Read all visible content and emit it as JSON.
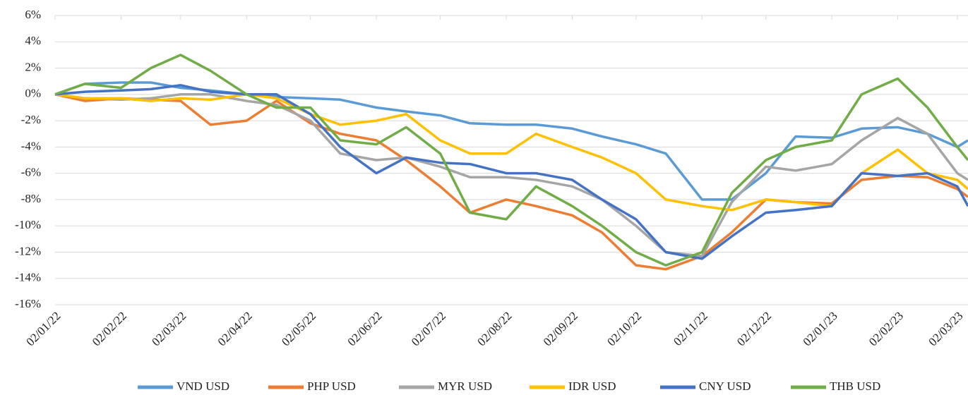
{
  "chart_data": {
    "type": "line",
    "x": [
      "02/01/22",
      "16/01/22",
      "02/02/22",
      "16/02/22",
      "02/03/22",
      "16/03/22",
      "02/04/22",
      "16/04/22",
      "02/05/22",
      "16/05/22",
      "02/06/22",
      "16/06/22",
      "02/07/22",
      "16/07/22",
      "02/08/22",
      "16/08/22",
      "02/09/22",
      "16/09/22",
      "02/10/22",
      "16/10/22",
      "02/11/22",
      "16/11/22",
      "02/12/22",
      "16/12/22",
      "02/01/23",
      "16/01/23",
      "02/02/23",
      "16/02/23",
      "02/03/23",
      "07/03/23"
    ],
    "series": [
      {
        "name": "VND USD",
        "color": "#5b9bd5",
        "values": [
          0,
          0.8,
          0.9,
          0.9,
          0.5,
          0.3,
          0,
          -0.2,
          -0.3,
          -0.4,
          -1.0,
          -1.3,
          -1.6,
          -2.2,
          -2.3,
          -2.3,
          -2.6,
          -3.2,
          -3.8,
          -4.5,
          -8.0,
          -8.0,
          -6.0,
          -3.2,
          -3.3,
          -2.6,
          -2.5,
          -3.0,
          -4.0,
          -3.5
        ]
      },
      {
        "name": "PHP USD",
        "color": "#ed7d31",
        "values": [
          0,
          -0.5,
          -0.3,
          -0.4,
          -0.5,
          -2.3,
          -2.0,
          -0.5,
          -2.2,
          -3.0,
          -3.5,
          -5.0,
          -7.0,
          -9.0,
          -8.0,
          -8.5,
          -9.2,
          -10.5,
          -13.0,
          -13.3,
          -12.3,
          -10.5,
          -8.0,
          -8.2,
          -8.3,
          -6.5,
          -6.2,
          -6.3,
          -7.2,
          -7.8
        ]
      },
      {
        "name": "MYR USD",
        "color": "#a5a5a5",
        "values": [
          0,
          -0.3,
          -0.4,
          -0.3,
          0,
          0,
          -0.5,
          -0.8,
          -2.0,
          -4.5,
          -5.0,
          -4.8,
          -5.5,
          -6.3,
          -6.3,
          -6.5,
          -7.0,
          -8.0,
          -10.0,
          -12.0,
          -12.3,
          -8.2,
          -5.5,
          -5.8,
          -5.3,
          -3.5,
          -1.8,
          -3.0,
          -6.0,
          -6.5
        ]
      },
      {
        "name": "IDR USD",
        "color": "#ffc000",
        "values": [
          0,
          -0.3,
          -0.3,
          -0.5,
          -0.3,
          -0.4,
          0,
          -0.3,
          -1.5,
          -2.3,
          -2.0,
          -1.5,
          -3.5,
          -4.5,
          -4.5,
          -3.0,
          -4.0,
          -4.8,
          -6.0,
          -8.0,
          -8.5,
          -8.8,
          -8.0,
          -8.2,
          -8.5,
          -6.0,
          -4.2,
          -6.0,
          -6.5,
          -7.2
        ]
      },
      {
        "name": "CNY USD",
        "color": "#4472c4",
        "values": [
          0,
          0.2,
          0.3,
          0.4,
          0.7,
          0.2,
          0,
          0,
          -1.5,
          -4.0,
          -6.0,
          -4.8,
          -5.2,
          -5.3,
          -6.0,
          -6.0,
          -6.5,
          -8.0,
          -9.5,
          -12.0,
          -12.5,
          -10.8,
          -9.0,
          -8.8,
          -8.5,
          -6.0,
          -6.2,
          -6.0,
          -7.0,
          -8.5
        ]
      },
      {
        "name": "THB USD",
        "color": "#70ad47",
        "values": [
          0,
          0.8,
          0.5,
          2.0,
          3.0,
          1.8,
          0,
          -1.0,
          -1.0,
          -3.5,
          -3.8,
          -2.5,
          -4.5,
          -9.0,
          -9.5,
          -7.0,
          -8.5,
          -10.0,
          -12.0,
          -13.0,
          -12.0,
          -7.5,
          -5.0,
          -4.0,
          -3.5,
          0.0,
          1.2,
          -1.0,
          -4.0,
          -5.0
        ]
      }
    ],
    "xlim": [
      "02/01/22",
      "07/03/23"
    ],
    "xticks": [
      "02/01/22",
      "02/02/22",
      "02/03/22",
      "02/04/22",
      "02/05/22",
      "02/06/22",
      "02/07/22",
      "02/08/22",
      "02/09/22",
      "02/10/22",
      "02/11/22",
      "02/12/22",
      "02/01/23",
      "02/02/23",
      "02/03/23"
    ],
    "ylim": [
      -16,
      6
    ],
    "yticks": [
      {
        "value": -16,
        "label": "-16%"
      },
      {
        "value": -14,
        "label": "-14%"
      },
      {
        "value": -12,
        "label": "-12%"
      },
      {
        "value": -10,
        "label": "-10%"
      },
      {
        "value": -8,
        "label": "-8%"
      },
      {
        "value": -6,
        "label": "-6%"
      },
      {
        "value": -4,
        "label": "-4%"
      },
      {
        "value": -2,
        "label": "-2%"
      },
      {
        "value": 0,
        "label": "0%"
      },
      {
        "value": 2,
        "label": "2%"
      },
      {
        "value": 4,
        "label": "4%"
      },
      {
        "value": 6,
        "label": "6%"
      }
    ],
    "grid": true,
    "legend": "bottom"
  }
}
